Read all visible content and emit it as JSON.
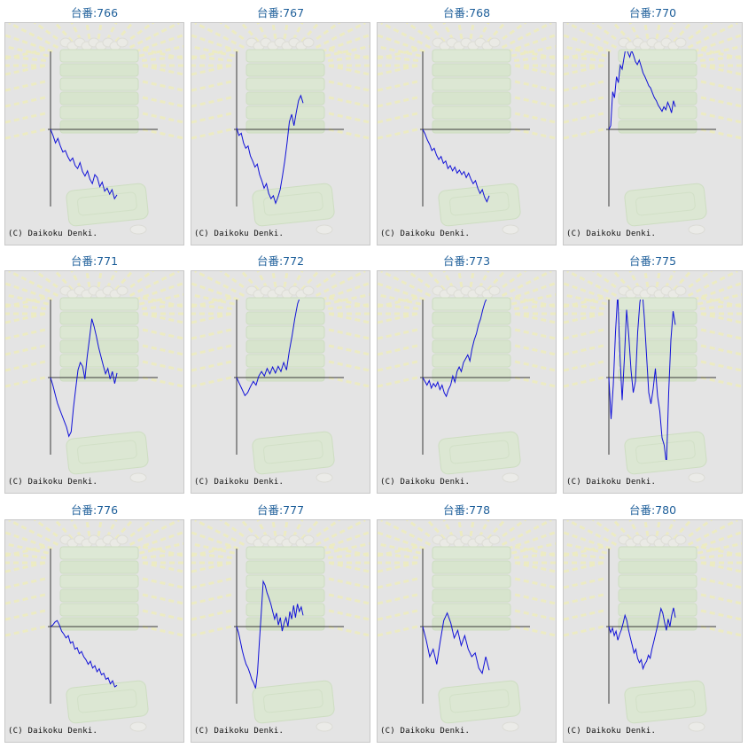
{
  "chart_data": [
    {
      "type": "line",
      "title": "台番:766",
      "footer": "(C) Daikoku Denki.",
      "y": [
        0,
        -0.08,
        -0.18,
        -0.12,
        -0.22,
        -0.3,
        -0.28,
        -0.36,
        -0.42,
        -0.38,
        -0.48,
        -0.52,
        -0.44,
        -0.56,
        -0.62,
        -0.55,
        -0.66,
        -0.72,
        -0.6,
        -0.64,
        -0.76,
        -0.7,
        -0.82,
        -0.78,
        -0.86,
        -0.8,
        -0.92,
        -0.87
      ]
    },
    {
      "type": "line",
      "title": "台番:767",
      "footer": "(C) Daikoku Denki.",
      "y": [
        0.02,
        -0.08,
        -0.05,
        -0.18,
        -0.25,
        -0.22,
        -0.35,
        -0.42,
        -0.5,
        -0.46,
        -0.6,
        -0.68,
        -0.78,
        -0.72,
        -0.85,
        -0.92,
        -0.88,
        -0.98,
        -0.9,
        -0.8,
        -0.62,
        -0.42,
        -0.18,
        0.1,
        0.2,
        0.05,
        0.22,
        0.38,
        0.45,
        0.35
      ]
    },
    {
      "type": "line",
      "title": "台番:768",
      "footer": "(C) Daikoku Denki.",
      "y": [
        0,
        -0.06,
        -0.14,
        -0.2,
        -0.28,
        -0.25,
        -0.34,
        -0.4,
        -0.36,
        -0.45,
        -0.42,
        -0.52,
        -0.48,
        -0.55,
        -0.5,
        -0.58,
        -0.54,
        -0.6,
        -0.56,
        -0.64,
        -0.58,
        -0.66,
        -0.72,
        -0.68,
        -0.78,
        -0.85,
        -0.8,
        -0.9,
        -0.96,
        -0.88
      ]
    },
    {
      "type": "line",
      "title": "台番:770",
      "footer": "(C) Daikoku Denki.",
      "y": [
        0,
        0.05,
        0.5,
        0.42,
        0.7,
        0.62,
        0.85,
        0.8,
        0.95,
        1.1,
        1.02,
        0.96,
        1.05,
        0.98,
        0.9,
        0.86,
        0.92,
        0.84,
        0.75,
        0.7,
        0.64,
        0.58,
        0.55,
        0.48,
        0.42,
        0.38,
        0.32,
        0.28,
        0.24,
        0.3,
        0.26,
        0.36,
        0.3,
        0.22,
        0.38,
        0.3
      ]
    },
    {
      "type": "line",
      "title": "台番:771",
      "footer": "(C) Daikoku Denki.",
      "y": [
        0,
        -0.1,
        -0.22,
        -0.34,
        -0.42,
        -0.5,
        -0.58,
        -0.66,
        -0.78,
        -0.72,
        -0.4,
        -0.15,
        0.1,
        0.2,
        0.15,
        -0.02,
        0.28,
        0.52,
        0.78,
        0.68,
        0.55,
        0.4,
        0.28,
        0.16,
        0.05,
        0.12,
        -0.02,
        0.08,
        -0.08,
        0.06
      ]
    },
    {
      "type": "line",
      "title": "台番:772",
      "footer": "(C) Daikoku Denki.",
      "y": [
        0,
        -0.08,
        -0.16,
        -0.24,
        -0.2,
        -0.12,
        -0.05,
        -0.1,
        0.02,
        0.08,
        0.02,
        0.12,
        0.05,
        0.14,
        0.06,
        0.15,
        0.08,
        0.2,
        0.1,
        0.35,
        0.55,
        0.78,
        0.98,
        1.08,
        1.2
      ]
    },
    {
      "type": "line",
      "title": "台番:773",
      "footer": "(C) Daikoku Denki.",
      "y": [
        0,
        -0.05,
        -0.1,
        -0.04,
        -0.14,
        -0.08,
        -0.12,
        -0.06,
        -0.16,
        -0.1,
        -0.2,
        -0.25,
        -0.16,
        -0.1,
        0.02,
        -0.06,
        0.08,
        0.14,
        0.08,
        0.2,
        0.25,
        0.3,
        0.22,
        0.38,
        0.5,
        0.58,
        0.7,
        0.78,
        0.9,
        1.0,
        1.06,
        1.12
      ]
    },
    {
      "type": "line",
      "title": "台番:775",
      "footer": "(C) Daikoku Denki.",
      "y": [
        0,
        -0.55,
        -0.1,
        0.6,
        1.12,
        0.3,
        -0.3,
        0.25,
        0.9,
        0.55,
        0.1,
        -0.2,
        -0.05,
        0.6,
        1.0,
        1.18,
        0.8,
        0.3,
        -0.2,
        -0.35,
        -0.15,
        0.12,
        -0.25,
        -0.45,
        -0.8,
        -0.9,
        -1.15,
        -0.2,
        0.5,
        0.88,
        0.7
      ]
    },
    {
      "type": "line",
      "title": "台番:776",
      "footer": "(C) Daikoku Denki.",
      "y": [
        0,
        0.02,
        0.06,
        0.08,
        0.02,
        -0.06,
        -0.1,
        -0.15,
        -0.12,
        -0.22,
        -0.2,
        -0.3,
        -0.28,
        -0.36,
        -0.33,
        -0.4,
        -0.44,
        -0.5,
        -0.46,
        -0.55,
        -0.52,
        -0.6,
        -0.56,
        -0.64,
        -0.62,
        -0.7,
        -0.68,
        -0.76,
        -0.72,
        -0.8,
        -0.78
      ]
    },
    {
      "type": "line",
      "title": "台番:777",
      "footer": "(C) Daikoku Denki.",
      "y": [
        0,
        -0.08,
        -0.2,
        -0.32,
        -0.42,
        -0.5,
        -0.55,
        -0.62,
        -0.7,
        -0.75,
        -0.82,
        -0.6,
        -0.2,
        0.2,
        0.6,
        0.55,
        0.45,
        0.38,
        0.3,
        0.2,
        0.1,
        0.18,
        0.02,
        0.12,
        -0.06,
        0.05,
        0.12,
        0.0,
        0.2,
        0.1,
        0.28,
        0.12,
        0.3,
        0.2,
        0.26,
        0.15
      ]
    },
    {
      "type": "line",
      "title": "台番:778",
      "footer": "(C) Daikoku Denki.",
      "y": [
        0,
        -0.18,
        -0.4,
        -0.3,
        -0.5,
        -0.2,
        0.08,
        0.18,
        0.05,
        -0.15,
        -0.05,
        -0.25,
        -0.12,
        -0.3,
        -0.4,
        -0.35,
        -0.55,
        -0.62,
        -0.4,
        -0.58
      ]
    },
    {
      "type": "line",
      "title": "台番:780",
      "footer": "(C) Daikoku Denki.",
      "y": [
        0,
        -0.08,
        -0.02,
        -0.12,
        -0.06,
        -0.18,
        -0.1,
        -0.04,
        0.05,
        0.15,
        0.08,
        -0.05,
        -0.15,
        -0.25,
        -0.35,
        -0.3,
        -0.42,
        -0.48,
        -0.44,
        -0.56,
        -0.5,
        -0.46,
        -0.38,
        -0.42,
        -0.3,
        -0.2,
        -0.1,
        0.0,
        0.12,
        0.24,
        0.18,
        0.06,
        -0.05,
        0.1,
        0.0,
        0.15,
        0.25,
        0.12
      ]
    }
  ]
}
